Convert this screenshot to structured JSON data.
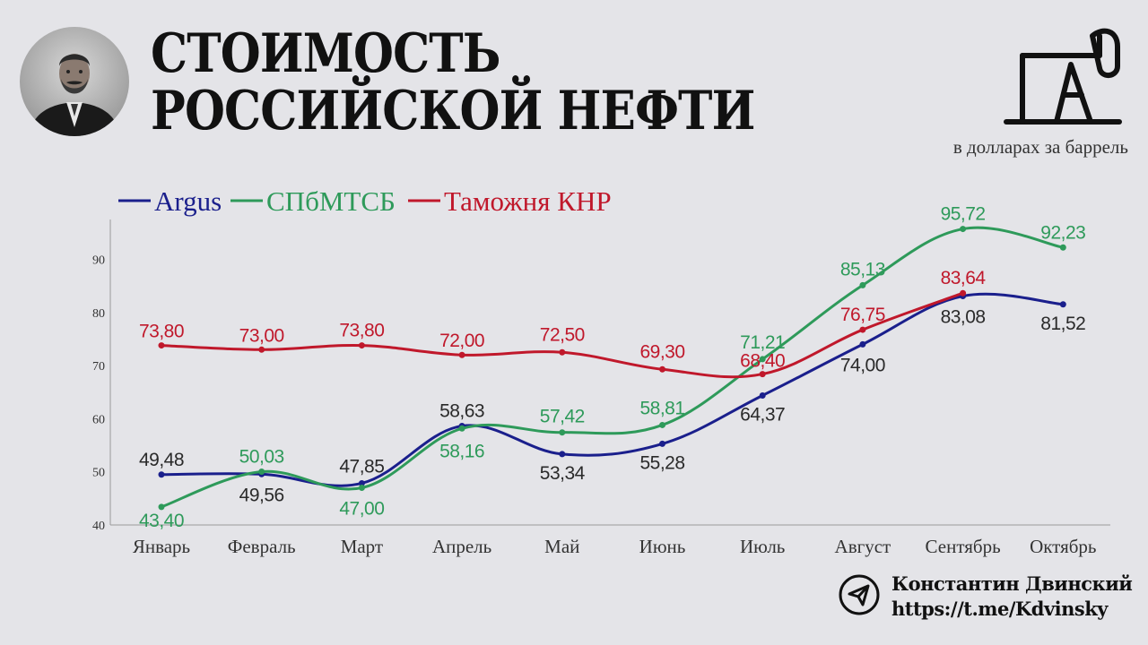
{
  "title_line1": "СТОИМОСТЬ",
  "title_line2": "РОССИЙСКОЙ НЕФТИ",
  "unit": "в долларах за баррель",
  "icons": {
    "portrait": "portrait-photo",
    "pump": "oil-pump-icon",
    "telegram": "telegram-icon"
  },
  "author": {
    "name": "Константин Двинский",
    "link": "https://t.me/Kdvinsky"
  },
  "chart_data": {
    "type": "line",
    "categories": [
      "Январь",
      "Февраль",
      "Март",
      "Апрель",
      "Май",
      "Июнь",
      "Июль",
      "Август",
      "Сентябрь",
      "Октябрь"
    ],
    "ylim": [
      40,
      100
    ],
    "yticks": [
      40,
      50,
      60,
      70,
      80,
      90
    ],
    "grid": false,
    "legend_position": "top-left",
    "series": [
      {
        "name": "Argus",
        "color": "#1a1f8c",
        "values": [
          49.48,
          49.56,
          47.85,
          58.63,
          53.34,
          55.28,
          64.37,
          74.0,
          83.08,
          81.52
        ],
        "labels": [
          "49,48",
          "49,56",
          "47,85",
          "58,63",
          "53,34",
          "55,28",
          "64,37",
          "74,00",
          "83,08",
          "81,52"
        ]
      },
      {
        "name": "СПбМТСБ",
        "color": "#2e9a5a",
        "values": [
          43.4,
          50.03,
          47.0,
          58.16,
          57.42,
          58.81,
          71.21,
          85.13,
          95.72,
          92.23
        ],
        "labels": [
          "43,40",
          "50,03",
          "47,00",
          "58,16",
          "57,42",
          "58,81",
          "71,21",
          "85,13",
          "95,72",
          "92,23"
        ]
      },
      {
        "name": "Таможня КНР",
        "color": "#c0182b",
        "values": [
          73.8,
          73.0,
          73.8,
          72.0,
          72.5,
          69.3,
          68.4,
          76.75,
          83.64,
          null
        ],
        "labels": [
          "73,80",
          "73,00",
          "73,80",
          "72,00",
          "72,50",
          "69,30",
          "68,40",
          "76,75",
          "83,64",
          null
        ]
      }
    ]
  }
}
